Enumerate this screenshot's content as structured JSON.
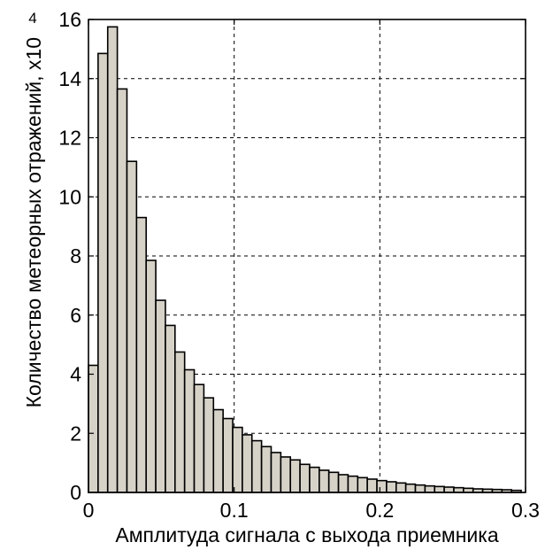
{
  "chart_data": {
    "type": "bar",
    "xlabel": "Амплитуда сигнала с выхода приемника",
    "ylabel": "Количество метеорных отражений, x10",
    "ylabel_exponent": "4",
    "xlim": [
      0,
      0.3
    ],
    "ylim": [
      0,
      16
    ],
    "grid": true,
    "x_ticks": [
      "0",
      "0.1",
      "0.2",
      "0.3"
    ],
    "y_ticks": [
      "0",
      "2",
      "4",
      "6",
      "8",
      "10",
      "12",
      "14",
      "16"
    ],
    "bar_width": 0.0066,
    "bar_color": "#d6d2c8",
    "x": [
      0.0033,
      0.0099,
      0.0165,
      0.0231,
      0.0297,
      0.0363,
      0.0429,
      0.0495,
      0.0561,
      0.0627,
      0.0693,
      0.0759,
      0.0825,
      0.0891,
      0.0957,
      0.1023,
      0.1089,
      0.1155,
      0.1221,
      0.1287,
      0.1353,
      0.1419,
      0.1485,
      0.1551,
      0.1617,
      0.1683,
      0.1749,
      0.1815,
      0.1881,
      0.1947,
      0.2013,
      0.2079,
      0.2145,
      0.2211,
      0.2277,
      0.2343,
      0.2409,
      0.2475,
      0.2541,
      0.2607,
      0.2673,
      0.2739,
      0.2805,
      0.2871,
      0.2937
    ],
    "values": [
      4.3,
      14.85,
      15.75,
      13.65,
      11.2,
      9.3,
      7.85,
      6.5,
      5.65,
      4.75,
      4.15,
      3.65,
      3.2,
      2.8,
      2.5,
      2.2,
      1.95,
      1.75,
      1.55,
      1.35,
      1.2,
      1.1,
      0.95,
      0.85,
      0.75,
      0.68,
      0.6,
      0.55,
      0.5,
      0.45,
      0.4,
      0.36,
      0.32,
      0.28,
      0.25,
      0.22,
      0.2,
      0.18,
      0.16,
      0.14,
      0.12,
      0.11,
      0.1,
      0.09,
      0.07
    ]
  }
}
